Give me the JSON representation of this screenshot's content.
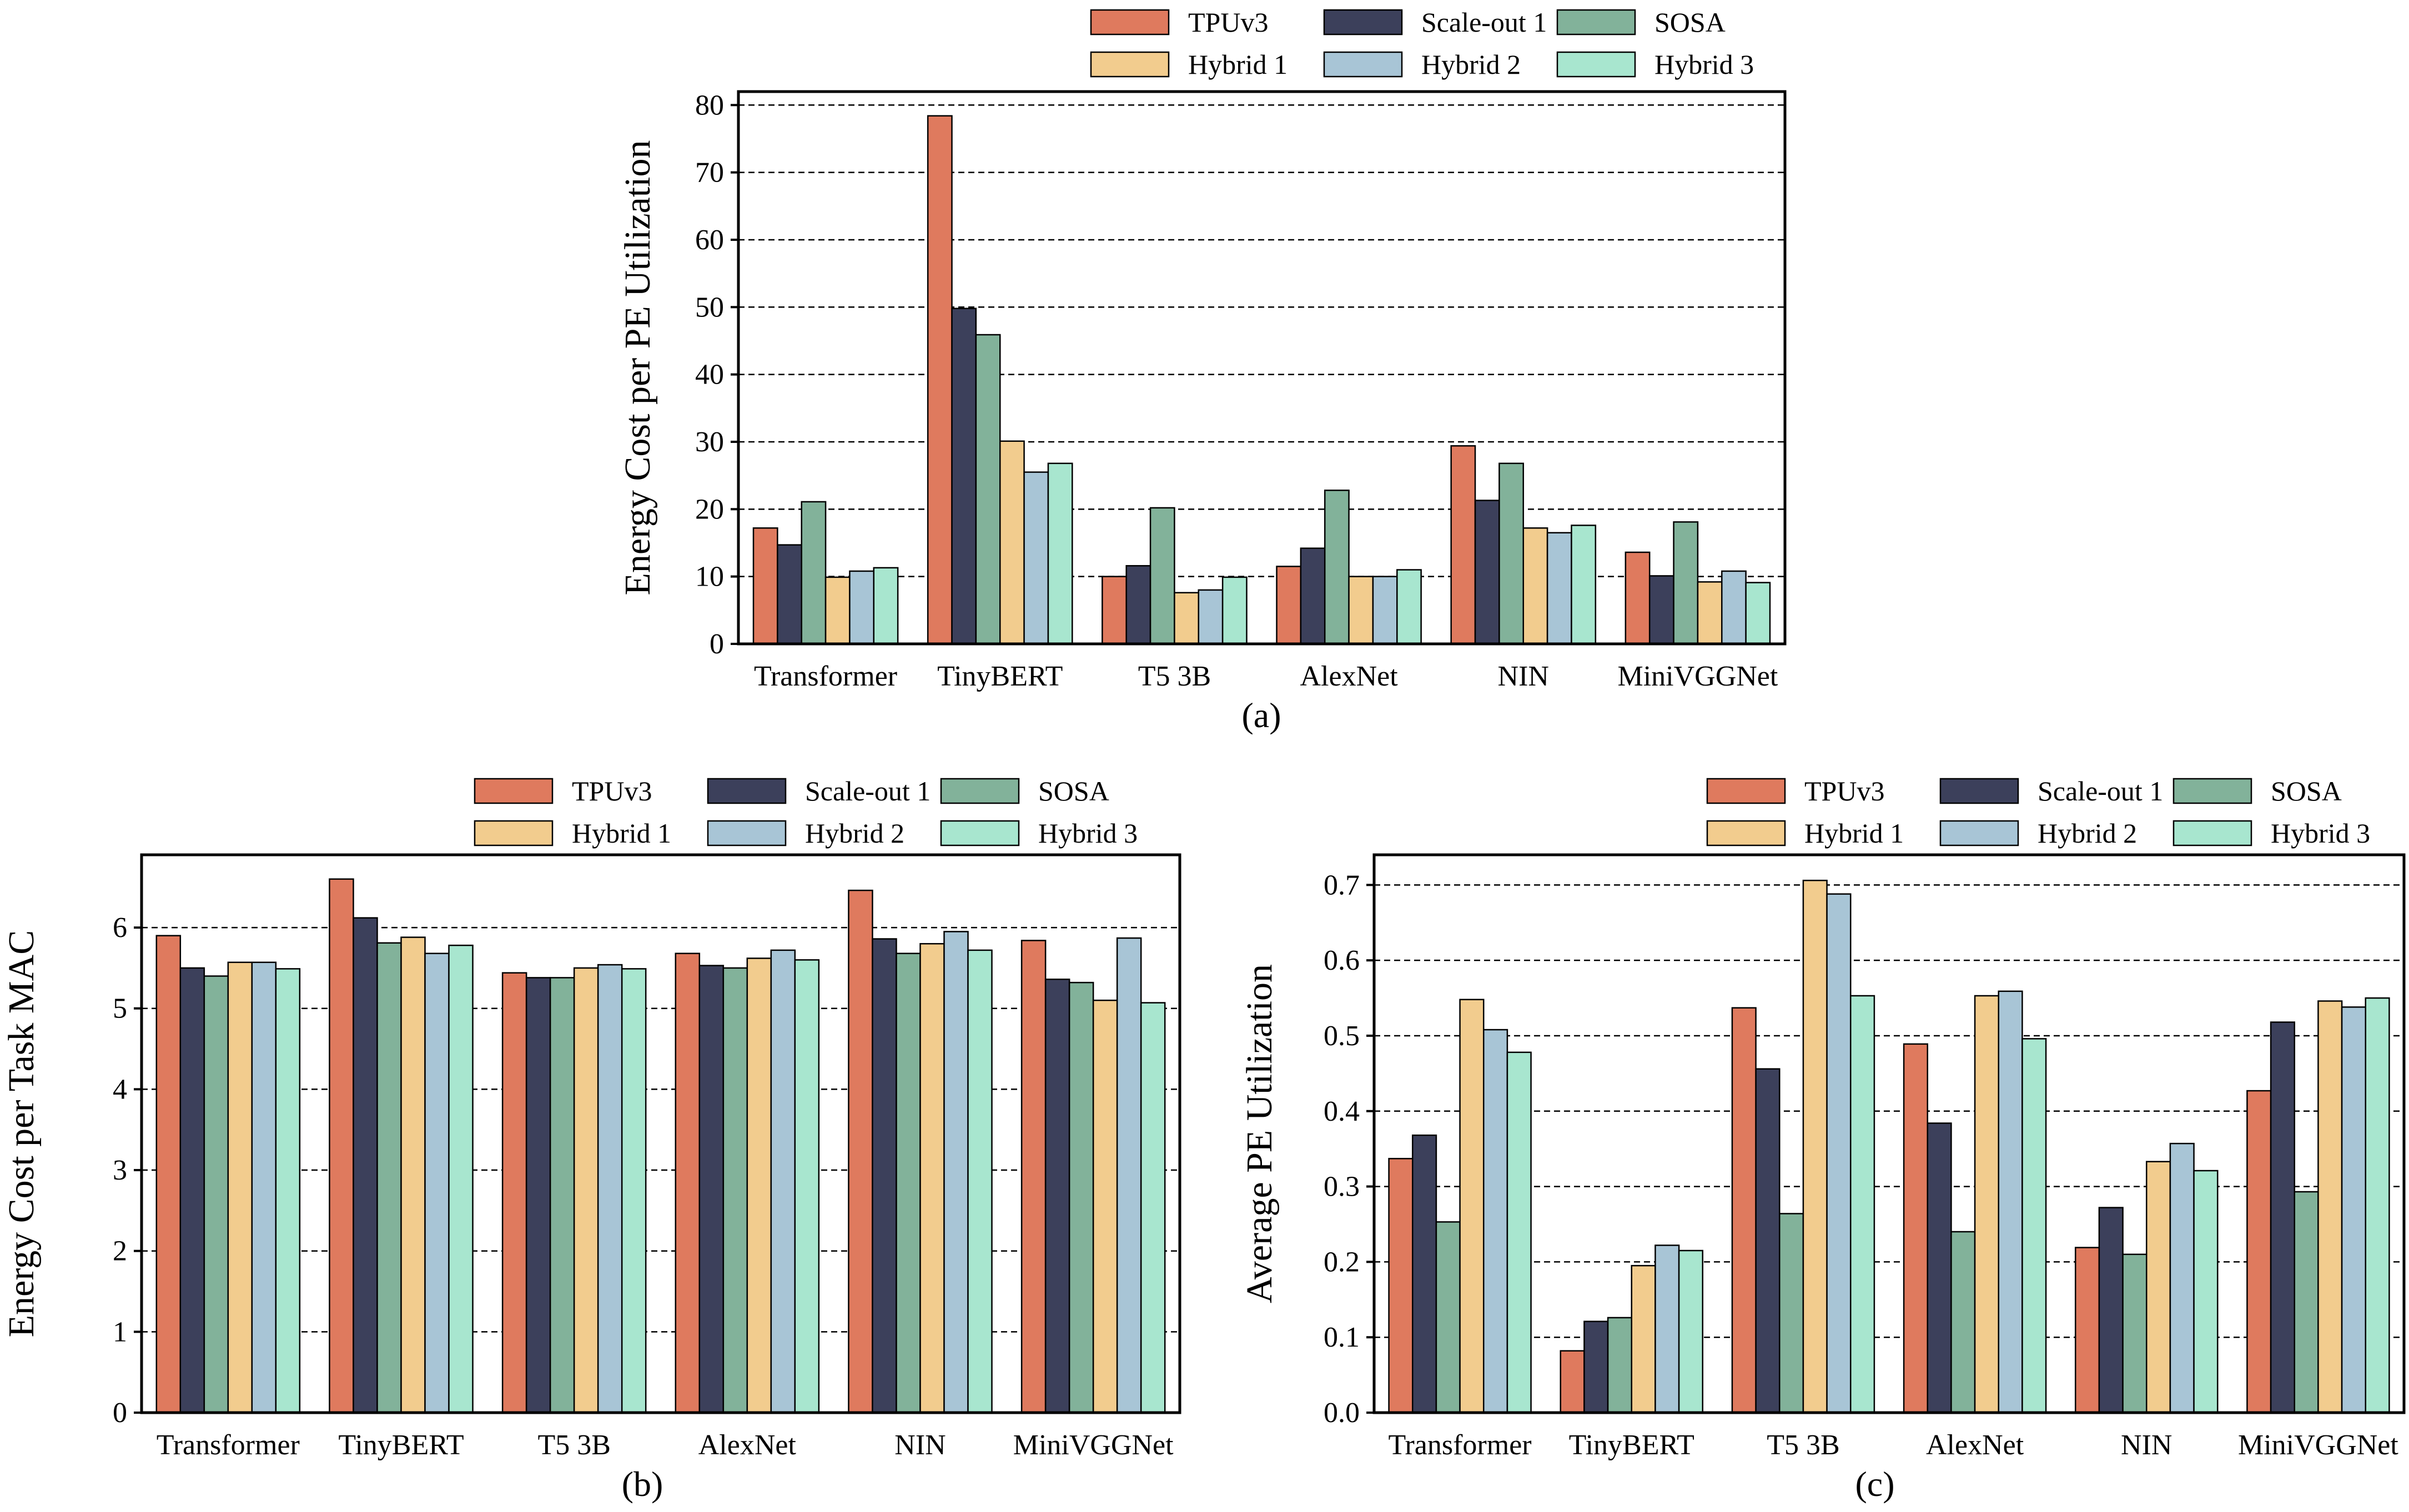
{
  "colors": {
    "TPUv3": "#df7a5e",
    "Scale-out 1": "#3c405b",
    "SOSA": "#82b29a",
    "Hybrid 1": "#f2cc8e",
    "Hybrid 2": "#a8c5d6",
    "Hybrid 3": "#a8e6cf"
  },
  "legend": [
    [
      "TPUv3",
      "Scale-out 1",
      "SOSA"
    ],
    [
      "Hybrid 1",
      "Hybrid 2",
      "Hybrid 3"
    ]
  ],
  "chart_data": [
    {
      "id": "a",
      "type": "bar",
      "caption": "(a)",
      "ylabel": "Energy Cost per PE Utilization",
      "xlabel": "",
      "ylim": [
        0,
        82
      ],
      "yticks": [
        0,
        10,
        20,
        30,
        40,
        50,
        60,
        70,
        80
      ],
      "ytick_labels": [
        "0",
        "10",
        "20",
        "30",
        "40",
        "50",
        "60",
        "70",
        "80"
      ],
      "grid": "horizontal dashed",
      "legend_position": "top",
      "categories": [
        "Transformer",
        "TinyBERT",
        "T5 3B",
        "AlexNet",
        "NIN",
        "MiniVGGNet"
      ],
      "series": [
        {
          "name": "TPUv3",
          "values": [
            17.2,
            78.4,
            10.0,
            11.5,
            29.4,
            13.6
          ]
        },
        {
          "name": "Scale-out 1",
          "values": [
            14.7,
            49.8,
            11.6,
            14.2,
            21.3,
            10.1
          ]
        },
        {
          "name": "SOSA",
          "values": [
            21.1,
            45.9,
            20.2,
            22.8,
            26.8,
            18.1
          ]
        },
        {
          "name": "Hybrid 1",
          "values": [
            9.9,
            30.1,
            7.6,
            10.0,
            17.2,
            9.2
          ]
        },
        {
          "name": "Hybrid 2",
          "values": [
            10.8,
            25.5,
            8.0,
            10.0,
            16.5,
            10.8
          ]
        },
        {
          "name": "Hybrid 3",
          "values": [
            11.3,
            26.8,
            9.9,
            11.0,
            17.6,
            9.1
          ]
        }
      ]
    },
    {
      "id": "b",
      "type": "bar",
      "caption": "(b)",
      "ylabel": "Energy Cost per Task MAC",
      "xlabel": "",
      "ylim": [
        0,
        6.9
      ],
      "yticks": [
        0,
        1,
        2,
        3,
        4,
        5,
        6
      ],
      "ytick_labels": [
        "0",
        "1",
        "2",
        "3",
        "4",
        "5",
        "6"
      ],
      "grid": "horizontal dashed",
      "legend_position": "top",
      "categories": [
        "Transformer",
        "TinyBERT",
        "T5 3B",
        "AlexNet",
        "NIN",
        "MiniVGGNet"
      ],
      "series": [
        {
          "name": "TPUv3",
          "values": [
            5.9,
            6.6,
            5.44,
            5.68,
            6.46,
            5.84
          ]
        },
        {
          "name": "Scale-out 1",
          "values": [
            5.5,
            6.12,
            5.38,
            5.53,
            5.86,
            5.36
          ]
        },
        {
          "name": "SOSA",
          "values": [
            5.4,
            5.81,
            5.38,
            5.5,
            5.68,
            5.32
          ]
        },
        {
          "name": "Hybrid 1",
          "values": [
            5.57,
            5.88,
            5.5,
            5.62,
            5.8,
            5.1
          ]
        },
        {
          "name": "Hybrid 2",
          "values": [
            5.57,
            5.68,
            5.54,
            5.72,
            5.95,
            5.87
          ]
        },
        {
          "name": "Hybrid 3",
          "values": [
            5.49,
            5.78,
            5.49,
            5.6,
            5.72,
            5.07
          ]
        }
      ]
    },
    {
      "id": "c",
      "type": "bar",
      "caption": "(c)",
      "ylabel": "Average PE Utilization",
      "xlabel": "",
      "ylim": [
        0,
        0.74
      ],
      "yticks": [
        0,
        0.1,
        0.2,
        0.3,
        0.4,
        0.5,
        0.6,
        0.7
      ],
      "ytick_labels": [
        "0.0",
        "0.1",
        "0.2",
        "0.3",
        "0.4",
        "0.5",
        "0.6",
        "0.7"
      ],
      "grid": "horizontal dashed",
      "legend_position": "top",
      "categories": [
        "Transformer",
        "TinyBERT",
        "T5 3B",
        "AlexNet",
        "NIN",
        "MiniVGGNet"
      ],
      "series": [
        {
          "name": "TPUv3",
          "values": [
            0.337,
            0.082,
            0.537,
            0.489,
            0.219,
            0.427
          ]
        },
        {
          "name": "Scale-out 1",
          "values": [
            0.368,
            0.121,
            0.456,
            0.384,
            0.272,
            0.518
          ]
        },
        {
          "name": "SOSA",
          "values": [
            0.253,
            0.126,
            0.264,
            0.24,
            0.21,
            0.293
          ]
        },
        {
          "name": "Hybrid 1",
          "values": [
            0.548,
            0.195,
            0.706,
            0.553,
            0.333,
            0.546
          ]
        },
        {
          "name": "Hybrid 2",
          "values": [
            0.508,
            0.222,
            0.688,
            0.559,
            0.357,
            0.538
          ]
        },
        {
          "name": "Hybrid 3",
          "values": [
            0.478,
            0.215,
            0.553,
            0.496,
            0.321,
            0.55
          ]
        }
      ]
    }
  ]
}
